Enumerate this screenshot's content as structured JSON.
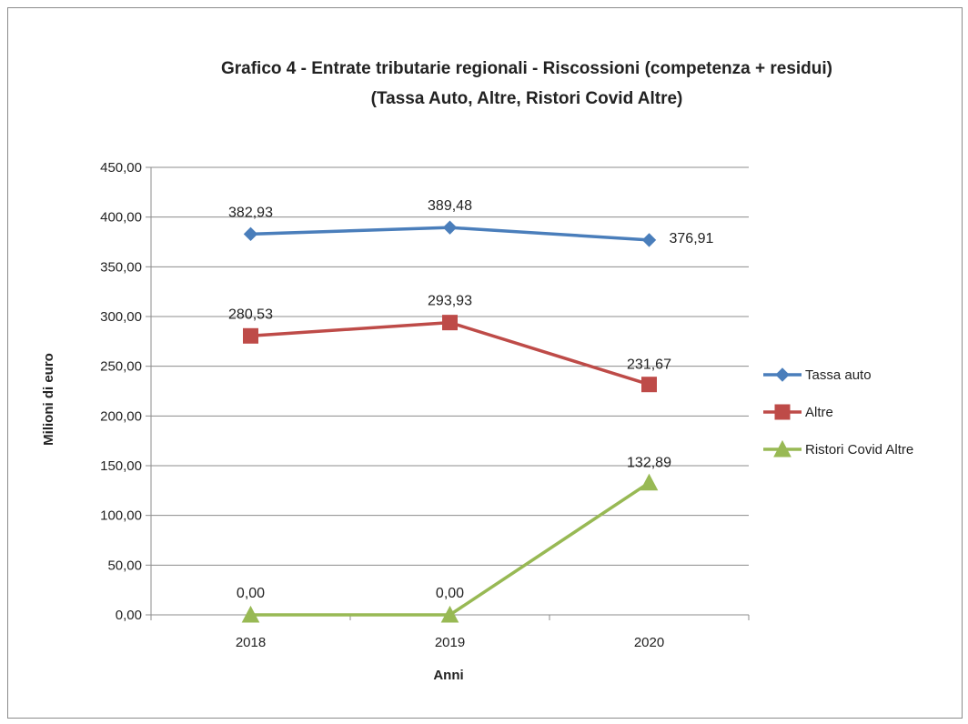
{
  "chart_data": {
    "type": "line",
    "title_lines": [
      "Grafico 4 - Entrate tributarie regionali - Riscossioni  (competenza + residui)",
      "(Tassa Auto, Altre, Ristori Covid Altre)"
    ],
    "xlabel": "Anni",
    "ylabel": "Milioni di euro",
    "categories": [
      "2018",
      "2019",
      "2020"
    ],
    "ylim": [
      0,
      450
    ],
    "yticks": [
      0,
      50,
      100,
      150,
      200,
      250,
      300,
      350,
      400,
      450
    ],
    "ytick_labels": [
      "0,00",
      "50,00",
      "100,00",
      "150,00",
      "200,00",
      "250,00",
      "300,00",
      "350,00",
      "400,00",
      "450,00"
    ],
    "grid": true,
    "legend_position": "right",
    "series": [
      {
        "name": "Tassa auto",
        "values": [
          382.93,
          389.48,
          376.91
        ],
        "labels": [
          "382,93",
          "389,48",
          "376,91"
        ],
        "color": "#4a7ebb",
        "marker": "diamond"
      },
      {
        "name": "Altre",
        "values": [
          280.53,
          293.93,
          231.67
        ],
        "labels": [
          "280,53",
          "293,93",
          "231,67"
        ],
        "color": "#be4b48",
        "marker": "square"
      },
      {
        "name": "Ristori Covid Altre",
        "values": [
          0.0,
          0.0,
          132.89
        ],
        "labels": [
          "0,00",
          "0,00",
          "132,89"
        ],
        "color": "#98b954",
        "marker": "triangle"
      }
    ]
  }
}
